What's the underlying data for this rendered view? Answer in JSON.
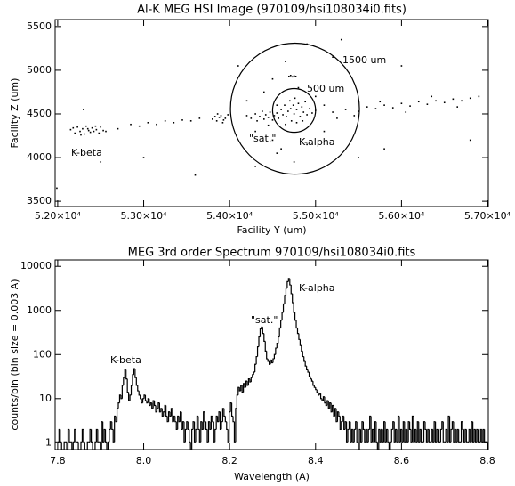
{
  "chart_data": [
    {
      "type": "scatter",
      "title": "Al-K MEG HSI Image (970109/hsi108034i0.fits)",
      "x_label": "Facility Y (um)",
      "y_label": "Facility Z (um)",
      "color": "#000000",
      "xlim": [
        51970,
        57010
      ],
      "ylim": [
        3440,
        5580
      ],
      "xticks": [
        {
          "value": 52000,
          "label": "5.20×10⁴"
        },
        {
          "value": 53000,
          "label": "5.30×10⁴"
        },
        {
          "value": 54000,
          "label": "5.40×10⁴"
        },
        {
          "value": 55000,
          "label": "5.50×10⁴"
        },
        {
          "value": 56000,
          "label": "5.60×10⁴"
        },
        {
          "value": 57000,
          "label": "5.70×10⁴"
        }
      ],
      "yticks": [
        3500,
        4000,
        4500,
        5000,
        5500
      ],
      "x": [
        52150,
        52200,
        52230,
        52260,
        52290,
        52310,
        52330,
        52360,
        52380,
        52400,
        52420,
        52450,
        52480,
        52500,
        52530,
        52180,
        52270,
        52350,
        52440,
        52560,
        52700,
        52850,
        52950,
        53050,
        53150,
        53250,
        53350,
        53450,
        53550,
        53650,
        53800,
        53830,
        53850,
        53880,
        53900,
        53930,
        53950,
        53980,
        53860,
        53920,
        54200,
        54250,
        54300,
        54320,
        54350,
        54380,
        54400,
        54420,
        54450,
        54470,
        54500,
        54520,
        54550,
        54570,
        54600,
        54620,
        54640,
        54660,
        54680,
        54700,
        54710,
        54720,
        54740,
        54750,
        54760,
        54780,
        54800,
        54820,
        54840,
        54860,
        54880,
        54900,
        54930,
        54960,
        55000,
        54650,
        54780,
        54450,
        54850,
        54550,
        54690,
        54710,
        54730,
        54750,
        54770,
        54300,
        54500,
        54600,
        54900,
        55100,
        54400,
        54800,
        55000,
        54200,
        54650,
        54900,
        55200,
        54100,
        54550,
        54750,
        55250,
        55100,
        54500,
        54300,
        55500,
        55200,
        55350,
        55500,
        55600,
        55700,
        55800,
        55900,
        56000,
        56100,
        56200,
        56300,
        56400,
        56500,
        56600,
        56700,
        56800,
        56900,
        55450,
        55750,
        56050,
        56350,
        56650,
        51990,
        52500,
        53000,
        53600,
        55800,
        56800,
        56000,
        55300,
        52300
      ],
      "y": [
        4320,
        4280,
        4350,
        4300,
        4330,
        4270,
        4360,
        4310,
        4290,
        4340,
        4300,
        4320,
        4280,
        4350,
        4310,
        4340,
        4260,
        4330,
        4360,
        4300,
        4330,
        4380,
        4360,
        4400,
        4380,
        4420,
        4400,
        4430,
        4420,
        4450,
        4440,
        4470,
        4420,
        4460,
        4480,
        4430,
        4450,
        4490,
        4500,
        4400,
        4480,
        4450,
        4500,
        4420,
        4470,
        4530,
        4440,
        4490,
        4460,
        4520,
        4430,
        4480,
        4510,
        4450,
        4550,
        4490,
        4600,
        4470,
        4530,
        4650,
        4560,
        4420,
        4600,
        4500,
        4680,
        4550,
        4620,
        4470,
        4580,
        4520,
        4640,
        4490,
        4560,
        4510,
        4540,
        4380,
        4400,
        4370,
        4420,
        4600,
        4930,
        4940,
        4925,
        4935,
        4930,
        4300,
        4200,
        4100,
        4150,
        4300,
        4750,
        4800,
        4700,
        4650,
        5100,
        5300,
        5150,
        5050,
        4050,
        3950,
        4450,
        4600,
        4900,
        3900,
        4000,
        4520,
        4550,
        4530,
        4580,
        4560,
        4600,
        4570,
        4620,
        4590,
        4640,
        4610,
        4650,
        4630,
        4670,
        4650,
        4680,
        4700,
        4480,
        4640,
        4520,
        4700,
        4580,
        3650,
        3950,
        4000,
        3800,
        4100,
        4200,
        5050,
        5350,
        4550
      ],
      "circles": [
        {
          "label": "1500 um",
          "diameter": 1500,
          "cx": 54760,
          "cy": 4560
        },
        {
          "label": "500 um",
          "diameter": 500,
          "cx": 54750,
          "cy": 4540
        }
      ],
      "annotations": [
        "K-beta",
        "\"sat.\"",
        "K-alpha"
      ]
    },
    {
      "type": "histogram",
      "title": "MEG 3rd order Spectrum 970109/hsi108034i0.fits",
      "x_label": "Wavelength (A)",
      "y_label": "counts/bin (bin size =  0.003 A)",
      "color": "#000000",
      "yscale": "log",
      "xlim": [
        7.794,
        8.802
      ],
      "ylim": [
        0.7,
        14000
      ],
      "xticks": [
        7.8,
        {
          "value": 8,
          "label": "8.0"
        },
        8.2,
        8.4,
        8.6,
        8.8
      ],
      "yticks": [
        1,
        10,
        100,
        1000,
        10000
      ],
      "bins": [
        7.8,
        7.803,
        7.806,
        7.809,
        7.812,
        7.815,
        7.818,
        7.821,
        7.824,
        7.827,
        7.83,
        7.833,
        7.836,
        7.839,
        7.842,
        7.845,
        7.848,
        7.851,
        7.854,
        7.857,
        7.86,
        7.863,
        7.866,
        7.869,
        7.872,
        7.875,
        7.878,
        7.881,
        7.884,
        7.887,
        7.89,
        7.893,
        7.896,
        7.899,
        7.902,
        7.905,
        7.908,
        7.911,
        7.914,
        7.917,
        7.92,
        7.923,
        7.926,
        7.929,
        7.932,
        7.935,
        7.938,
        7.941,
        7.944,
        7.947,
        7.95,
        7.953,
        7.956,
        7.959,
        7.962,
        7.965,
        7.968,
        7.971,
        7.974,
        7.977,
        7.98,
        7.983,
        7.986,
        7.989,
        7.992,
        7.995,
        7.998,
        8.001,
        8.004,
        8.007,
        8.01,
        8.013,
        8.016,
        8.019,
        8.022,
        8.025,
        8.028,
        8.031,
        8.034,
        8.037,
        8.04,
        8.043,
        8.046,
        8.049,
        8.052,
        8.055,
        8.058,
        8.061,
        8.064,
        8.067,
        8.07,
        8.073,
        8.076,
        8.079,
        8.082,
        8.085,
        8.088,
        8.091,
        8.094,
        8.097,
        8.1,
        8.103,
        8.106,
        8.109,
        8.112,
        8.115,
        8.118,
        8.121,
        8.124,
        8.127,
        8.13,
        8.133,
        8.136,
        8.139,
        8.142,
        8.145,
        8.148,
        8.151,
        8.154,
        8.157,
        8.16,
        8.163,
        8.166,
        8.169,
        8.172,
        8.175,
        8.178,
        8.181,
        8.184,
        8.187,
        8.19,
        8.193,
        8.196,
        8.199,
        8.202,
        8.205,
        8.208,
        8.211,
        8.214,
        8.217,
        8.22,
        8.223,
        8.226,
        8.229,
        8.232,
        8.235,
        8.238,
        8.241,
        8.244,
        8.247,
        8.25,
        8.253,
        8.256,
        8.259,
        8.262,
        8.265,
        8.268,
        8.271,
        8.274,
        8.277,
        8.28,
        8.283,
        8.286,
        8.289,
        8.292,
        8.295,
        8.298,
        8.301,
        8.304,
        8.307,
        8.31,
        8.313,
        8.316,
        8.319,
        8.322,
        8.325,
        8.328,
        8.331,
        8.334,
        8.337,
        8.34,
        8.343,
        8.346,
        8.349,
        8.352,
        8.355,
        8.358,
        8.361,
        8.364,
        8.367,
        8.37,
        8.373,
        8.376,
        8.379,
        8.382,
        8.385,
        8.388,
        8.391,
        8.394,
        8.397,
        8.4,
        8.403,
        8.406,
        8.409,
        8.412,
        8.415,
        8.418,
        8.421,
        8.424,
        8.427,
        8.43,
        8.433,
        8.436,
        8.439,
        8.442,
        8.445,
        8.448,
        8.451,
        8.454,
        8.457,
        8.46,
        8.463,
        8.466,
        8.469,
        8.472,
        8.475,
        8.478,
        8.481,
        8.484,
        8.487,
        8.49,
        8.493,
        8.496,
        8.499,
        8.502,
        8.505,
        8.508,
        8.511,
        8.514,
        8.517,
        8.52,
        8.523,
        8.526,
        8.529,
        8.532,
        8.535,
        8.538,
        8.541,
        8.544,
        8.547,
        8.55,
        8.553,
        8.556,
        8.559,
        8.562,
        8.565,
        8.568,
        8.571,
        8.574,
        8.577,
        8.58,
        8.583,
        8.586,
        8.589,
        8.592,
        8.595,
        8.598,
        8.601,
        8.604,
        8.607,
        8.61,
        8.613,
        8.616,
        8.619,
        8.622,
        8.625,
        8.628,
        8.631,
        8.634,
        8.637,
        8.64,
        8.643,
        8.646,
        8.649,
        8.652,
        8.655,
        8.658,
        8.661,
        8.664,
        8.667,
        8.67,
        8.673,
        8.676,
        8.679,
        8.682,
        8.685,
        8.688,
        8.691,
        8.694,
        8.697,
        8.7,
        8.703,
        8.706,
        8.709,
        8.712,
        8.715,
        8.718,
        8.721,
        8.724,
        8.727,
        8.73,
        8.733,
        8.736,
        8.739,
        8.742,
        8.745,
        8.748,
        8.751,
        8.754,
        8.757,
        8.76,
        8.763,
        8.766,
        8.769,
        8.772,
        8.775,
        8.778,
        8.781,
        8.784,
        8.787,
        8.79,
        8.793,
        8.796,
        8.799
      ],
      "values": [
        1,
        2,
        1,
        0,
        0,
        1,
        1,
        0,
        2,
        1,
        1,
        0,
        1,
        2,
        1,
        1,
        0,
        0,
        1,
        2,
        1,
        0,
        0,
        1,
        1,
        2,
        1,
        0,
        0,
        1,
        2,
        1,
        1,
        0,
        3,
        1,
        2,
        1,
        0,
        1,
        2,
        3,
        2,
        1,
        4,
        3,
        6,
        8,
        12,
        10,
        20,
        30,
        45,
        28,
        14,
        9,
        12,
        20,
        35,
        48,
        30,
        20,
        15,
        12,
        10,
        8,
        10,
        12,
        9,
        8,
        10,
        7,
        8,
        6,
        9,
        7,
        5,
        6,
        8,
        5,
        6,
        4,
        5,
        7,
        4,
        3,
        5,
        4,
        6,
        3,
        4,
        3,
        2,
        4,
        3,
        5,
        2,
        3,
        1,
        2,
        3,
        2,
        1,
        0,
        2,
        3,
        1,
        2,
        4,
        2,
        1,
        3,
        2,
        5,
        3,
        2,
        1,
        3,
        2,
        4,
        3,
        1,
        2,
        4,
        3,
        5,
        2,
        3,
        6,
        4,
        3,
        2,
        1,
        5,
        8,
        4,
        3,
        1,
        6,
        12,
        18,
        15,
        20,
        14,
        22,
        18,
        25,
        20,
        28,
        24,
        30,
        35,
        40,
        60,
        90,
        150,
        250,
        380,
        420,
        300,
        200,
        120,
        80,
        70,
        60,
        75,
        65,
        80,
        100,
        140,
        180,
        250,
        400,
        600,
        900,
        1400,
        2200,
        3200,
        4500,
        5300,
        3800,
        2400,
        1500,
        900,
        600,
        400,
        300,
        220,
        160,
        120,
        90,
        70,
        55,
        45,
        40,
        32,
        28,
        25,
        20,
        18,
        16,
        14,
        12,
        13,
        10,
        9,
        11,
        8,
        7,
        9,
        6,
        8,
        5,
        7,
        4,
        6,
        3,
        5,
        4,
        2,
        3,
        4,
        2,
        3,
        1,
        2,
        3,
        1,
        2,
        1,
        2,
        3,
        1,
        0,
        2,
        1,
        3,
        2,
        1,
        2,
        1,
        2,
        4,
        1,
        2,
        1,
        3,
        1,
        0,
        2,
        1,
        2,
        1,
        3,
        1,
        2,
        1,
        0,
        1,
        2,
        3,
        1,
        2,
        1,
        4,
        1,
        2,
        1,
        3,
        1,
        2,
        1,
        3,
        2,
        1,
        4,
        1,
        2,
        1,
        3,
        1,
        2,
        1,
        1,
        3,
        2,
        1,
        2,
        1,
        1,
        2,
        1,
        3,
        1,
        2,
        1,
        1,
        2,
        3,
        1,
        1,
        2,
        1,
        4,
        1,
        2,
        3,
        1,
        2,
        1,
        2,
        1,
        1,
        3,
        2,
        1,
        2,
        1,
        1,
        2,
        1,
        3,
        1,
        2,
        1,
        2,
        1,
        1,
        2,
        1,
        2,
        1,
        1
      ],
      "annotations": [
        "K-beta",
        "\"sat.\"",
        "K-alpha"
      ]
    }
  ]
}
